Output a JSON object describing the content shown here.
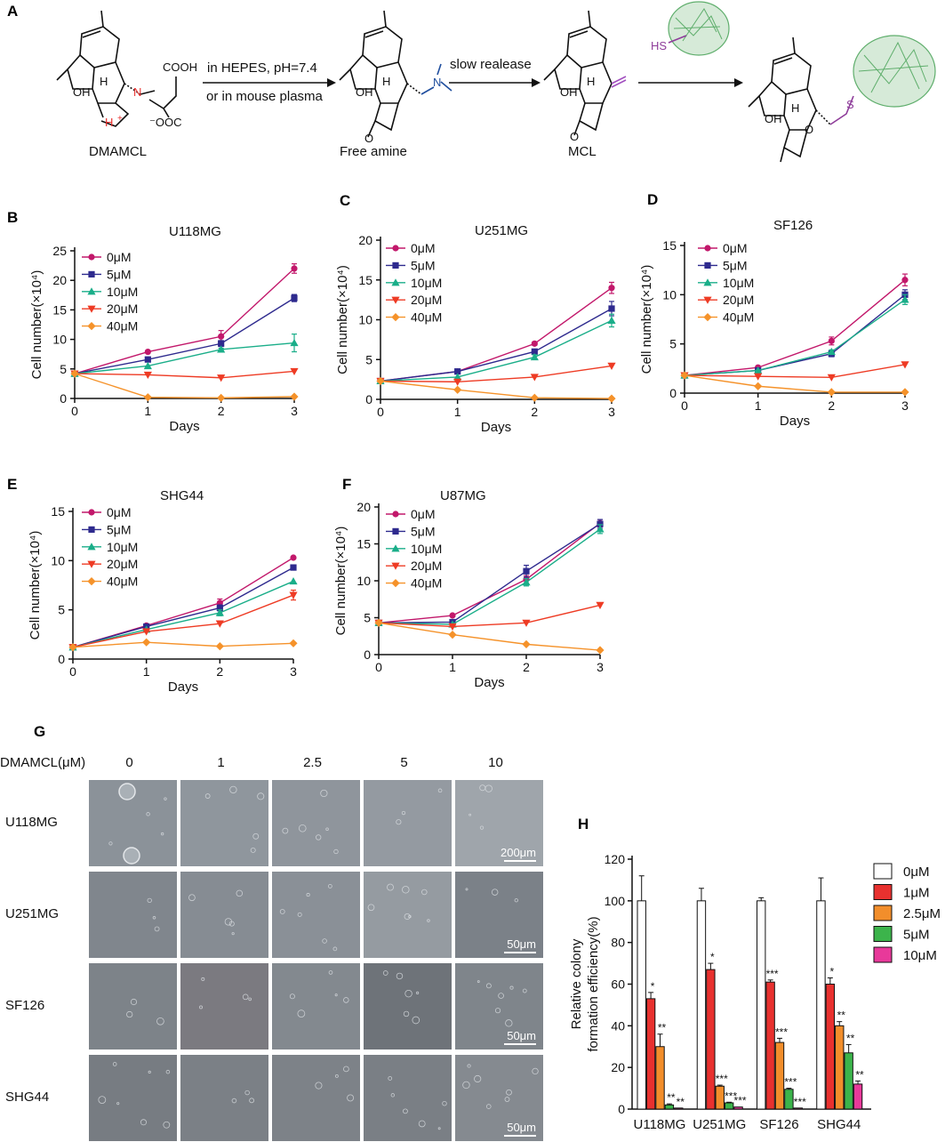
{
  "scheme": {
    "label": "A",
    "step1_top": "in HEPES, pH=7.4",
    "step1_bottom": "or in mouse plasma",
    "step2": "slow realease",
    "captions": [
      "DMAMCL",
      "Free amine",
      "MCL"
    ],
    "atoms": {
      "H": "H",
      "OH": "OH",
      "N": "N",
      "COOH": "COOH",
      "OOC": "⁻OOC",
      "O": "O",
      "HS": "HS",
      "S": "S",
      "plus": "+"
    }
  },
  "growth_charts": [
    {
      "label": "B",
      "title": "U118MG",
      "ylabel": "Cell number(×10⁴)",
      "xlabel": "Days",
      "ylim": [
        0,
        25
      ],
      "yticks": [
        0,
        5,
        10,
        15,
        20,
        25
      ],
      "x": [
        0,
        1,
        2,
        3
      ],
      "series": [
        {
          "name": "0μM",
          "values": [
            4.2,
            7.9,
            10.5,
            22.0
          ],
          "err": [
            0,
            0,
            1.0,
            0.8
          ]
        },
        {
          "name": "5μM",
          "values": [
            4.2,
            6.6,
            9.3,
            17.0
          ],
          "err": [
            0,
            0.3,
            0.5,
            0.6
          ]
        },
        {
          "name": "10μM",
          "values": [
            4.2,
            5.5,
            8.3,
            9.4
          ],
          "err": [
            0,
            0,
            0.2,
            1.5
          ]
        },
        {
          "name": "20μM",
          "values": [
            4.2,
            4.0,
            3.5,
            4.6
          ],
          "err": [
            0,
            0,
            0,
            0
          ]
        },
        {
          "name": "40μM",
          "values": [
            4.2,
            0.2,
            0.1,
            0.3
          ],
          "err": [
            0,
            0,
            0,
            0
          ]
        }
      ]
    },
    {
      "label": "C",
      "title": "U251MG",
      "ylabel": "Cell number(×10⁴)",
      "xlabel": "Days",
      "ylim": [
        0,
        20
      ],
      "yticks": [
        0,
        5,
        10,
        15,
        20
      ],
      "x": [
        0,
        1,
        2,
        3
      ],
      "series": [
        {
          "name": "0μM",
          "values": [
            2.3,
            3.5,
            7.0,
            14.0
          ],
          "err": [
            0,
            0,
            0.2,
            0.7
          ]
        },
        {
          "name": "5μM",
          "values": [
            2.3,
            3.5,
            6.0,
            11.4
          ],
          "err": [
            0,
            0,
            0.3,
            0.9
          ]
        },
        {
          "name": "10μM",
          "values": [
            2.3,
            2.8,
            5.3,
            9.9
          ],
          "err": [
            0,
            0,
            0.3,
            0.8
          ]
        },
        {
          "name": "20μM",
          "values": [
            2.3,
            2.2,
            2.8,
            4.2
          ],
          "err": [
            0,
            0,
            0,
            0
          ]
        },
        {
          "name": "40μM",
          "values": [
            2.3,
            1.2,
            0.2,
            0.1
          ],
          "err": [
            0,
            0,
            0,
            0
          ]
        }
      ]
    },
    {
      "label": "D",
      "title": "SF126",
      "ylabel": "Cell number(×10⁴)",
      "xlabel": "Days",
      "ylim": [
        0,
        15
      ],
      "yticks": [
        0,
        5,
        10,
        15
      ],
      "x": [
        0,
        1,
        2,
        3
      ],
      "series": [
        {
          "name": "0μM",
          "values": [
            1.8,
            2.6,
            5.3,
            11.5
          ],
          "err": [
            0,
            0,
            0.4,
            0.6
          ]
        },
        {
          "name": "5μM",
          "values": [
            1.8,
            2.3,
            4.0,
            10.0
          ],
          "err": [
            0,
            0,
            0.3,
            0.5
          ]
        },
        {
          "name": "10μM",
          "values": [
            1.8,
            2.3,
            4.2,
            9.5
          ],
          "err": [
            0,
            0,
            0.2,
            0.5
          ]
        },
        {
          "name": "20μM",
          "values": [
            1.8,
            1.7,
            1.6,
            2.9
          ],
          "err": [
            0,
            0,
            0,
            0
          ]
        },
        {
          "name": "40μM",
          "values": [
            1.8,
            0.7,
            0.1,
            0.1
          ],
          "err": [
            0,
            0,
            0,
            0
          ]
        }
      ]
    },
    {
      "label": "E",
      "title": "SHG44",
      "ylabel": "Cell number(×10⁴)",
      "xlabel": "Days",
      "ylim": [
        0,
        15
      ],
      "yticks": [
        0,
        5,
        10,
        15
      ],
      "x": [
        0,
        1,
        2,
        3
      ],
      "series": [
        {
          "name": "0μM",
          "values": [
            1.2,
            3.4,
            5.7,
            10.3
          ],
          "err": [
            0,
            0,
            0.4,
            0
          ]
        },
        {
          "name": "5μM",
          "values": [
            1.2,
            3.3,
            5.2,
            9.3
          ],
          "err": [
            0,
            0,
            0.3,
            0
          ]
        },
        {
          "name": "10μM",
          "values": [
            1.2,
            3.0,
            4.7,
            7.9
          ],
          "err": [
            0,
            0,
            0.3,
            0
          ]
        },
        {
          "name": "20μM",
          "values": [
            1.2,
            2.8,
            3.6,
            6.5
          ],
          "err": [
            0,
            0,
            0,
            0.5
          ]
        },
        {
          "name": "40μM",
          "values": [
            1.2,
            1.7,
            1.3,
            1.6
          ],
          "err": [
            0,
            0,
            0,
            0
          ]
        }
      ]
    },
    {
      "label": "F",
      "title": "U87MG",
      "ylabel": "Cell number(×10⁴)",
      "xlabel": "Days",
      "ylim": [
        0,
        20
      ],
      "yticks": [
        0,
        5,
        10,
        15,
        20
      ],
      "x": [
        0,
        1,
        2,
        3
      ],
      "series": [
        {
          "name": "0μM",
          "values": [
            4.3,
            5.3,
            10.2,
            17.8
          ],
          "err": [
            0,
            0,
            0.5,
            0.5
          ]
        },
        {
          "name": "5μM",
          "values": [
            4.3,
            4.4,
            11.3,
            17.7
          ],
          "err": [
            0,
            0,
            0.8,
            0.6
          ]
        },
        {
          "name": "10μM",
          "values": [
            4.3,
            4.1,
            9.8,
            17.0
          ],
          "err": [
            0,
            0,
            0.5,
            0.6
          ]
        },
        {
          "name": "20μM",
          "values": [
            4.3,
            3.8,
            4.3,
            6.7
          ],
          "err": [
            0,
            0,
            0,
            0
          ]
        },
        {
          "name": "40μM",
          "values": [
            4.3,
            2.7,
            1.4,
            0.6
          ],
          "err": [
            0,
            0,
            0,
            0
          ]
        }
      ]
    }
  ],
  "colony_images": {
    "label": "G",
    "header": "DMAMCL(μM)",
    "doses": [
      "0",
      "1",
      "2.5",
      "5",
      "10"
    ],
    "cell_lines": [
      "U118MG",
      "U251MG",
      "SF126",
      "SHG44"
    ],
    "scale_bars": [
      "200μm",
      "50μm",
      "50μm",
      "50μm"
    ],
    "tones": [
      [
        "#8b9299",
        "#8f969d",
        "#8f959c",
        "#949aa1",
        "#9fa5ab"
      ],
      [
        "#80868d",
        "#868c93",
        "#8a9097",
        "#959ba1",
        "#7b8188"
      ],
      [
        "#7d8389",
        "#7b7a80",
        "#83898f",
        "#6e7379",
        "#7f858b"
      ],
      [
        "#777c82",
        "#7b8086",
        "#7d8288",
        "#7a7f85",
        "#858a90"
      ]
    ]
  },
  "chart_data": {
    "type": "bar",
    "label": "H",
    "title": "",
    "ylabel": "Relative colony formation efficiency(%)",
    "ylabel_lines": [
      "Relative colony",
      "formation efficiency(%)"
    ],
    "xlabel": "",
    "ylim": [
      0,
      120
    ],
    "yticks": [
      0,
      20,
      40,
      60,
      80,
      100,
      120
    ],
    "categories": [
      "U118MG",
      "U251MG",
      "SF126",
      "SHG44"
    ],
    "series": [
      {
        "name": "0μM",
        "color": "#ffffff",
        "values": [
          100,
          100,
          100,
          100
        ],
        "err": [
          12,
          6,
          1.5,
          11
        ],
        "sig": [
          "",
          "",
          "",
          ""
        ]
      },
      {
        "name": "1μM",
        "color": "#e8312f",
        "values": [
          53,
          67,
          61,
          60
        ],
        "err": [
          3,
          3,
          1,
          3
        ],
        "sig": [
          "*",
          "*",
          "***",
          "*"
        ]
      },
      {
        "name": "2.5μM",
        "color": "#f28e2b",
        "values": [
          30,
          11,
          32,
          40
        ],
        "err": [
          6,
          0.5,
          2,
          2
        ],
        "sig": [
          "**",
          "***",
          "***",
          "**"
        ]
      },
      {
        "name": "5μM",
        "color": "#3cb44b",
        "values": [
          2,
          3,
          9.5,
          27
        ],
        "err": [
          0.5,
          0.3,
          0.5,
          4
        ],
        "sig": [
          "**",
          "***",
          "***",
          "**"
        ]
      },
      {
        "name": "10μM",
        "color": "#e8399a",
        "values": [
          0.5,
          1,
          0.5,
          12
        ],
        "err": [
          0,
          0,
          0,
          1.5
        ],
        "sig": [
          "**",
          "***",
          "***",
          "**"
        ]
      }
    ]
  },
  "styles": {
    "series_colors": [
      "#c2186b",
      "#2e2a8e",
      "#1aae89",
      "#ee3b24",
      "#f5922a"
    ],
    "marker_shapes": [
      "circle",
      "square",
      "triangle-up",
      "triangle-down",
      "diamond"
    ],
    "bond_color": "#111111",
    "amine_color": "#1f4e9e",
    "charge_color": "#e8312f",
    "thiol_color": "#8e3c9a",
    "exo_color": "#a24fbf",
    "protein_color": "#5fae6c"
  }
}
